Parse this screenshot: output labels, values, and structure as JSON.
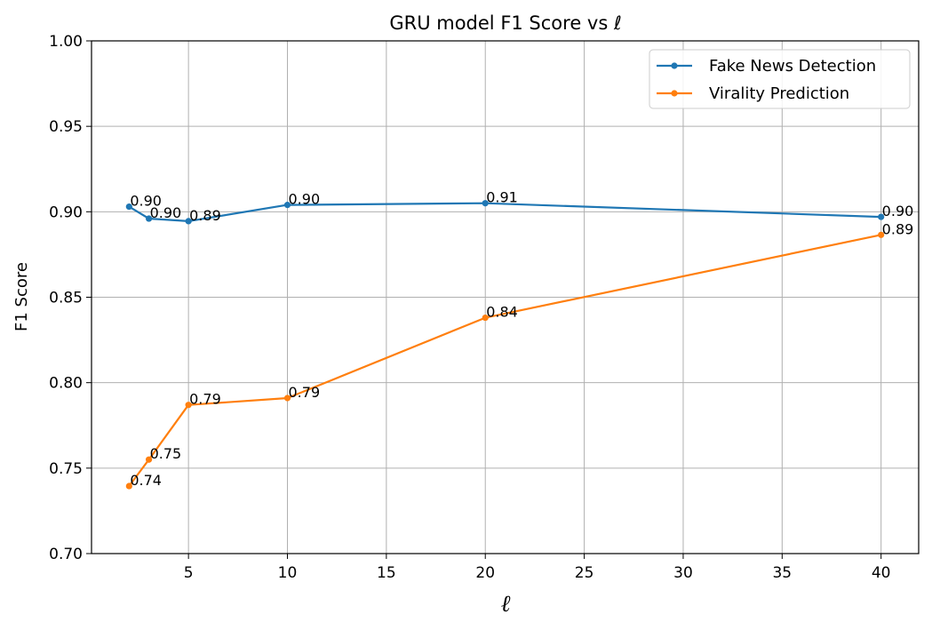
{
  "chart_data": {
    "type": "line",
    "title": "GRU model F1 Score vs ℓ",
    "xlabel": "ℓ",
    "ylabel": "F1 Score",
    "xlim": [
      0.1,
      41.9
    ],
    "ylim": [
      0.7,
      1.0
    ],
    "xticks": [
      5,
      10,
      15,
      20,
      25,
      30,
      35,
      40
    ],
    "yticks": [
      0.7,
      0.75,
      0.8,
      0.85,
      0.9,
      0.95,
      1.0
    ],
    "xtick_labels": [
      "5",
      "10",
      "15",
      "20",
      "25",
      "30",
      "35",
      "40"
    ],
    "ytick_labels": [
      "0.70",
      "0.75",
      "0.80",
      "0.85",
      "0.90",
      "0.95",
      "1.00"
    ],
    "grid": true,
    "legend_position": "top-right",
    "x": [
      2,
      3,
      5,
      10,
      20,
      40
    ],
    "series": [
      {
        "name": "Fake News Detection",
        "color": "#1f77b4",
        "values": [
          0.903,
          0.896,
          0.8945,
          0.904,
          0.905,
          0.897
        ],
        "labels": [
          "0.90",
          "0.90",
          "0.89",
          "0.90",
          "0.91",
          "0.90"
        ]
      },
      {
        "name": "Virality Prediction",
        "color": "#ff7f0e",
        "values": [
          0.7395,
          0.755,
          0.787,
          0.791,
          0.838,
          0.8865
        ],
        "labels": [
          "0.74",
          "0.75",
          "0.79",
          "0.79",
          "0.84",
          "0.89"
        ]
      }
    ]
  }
}
